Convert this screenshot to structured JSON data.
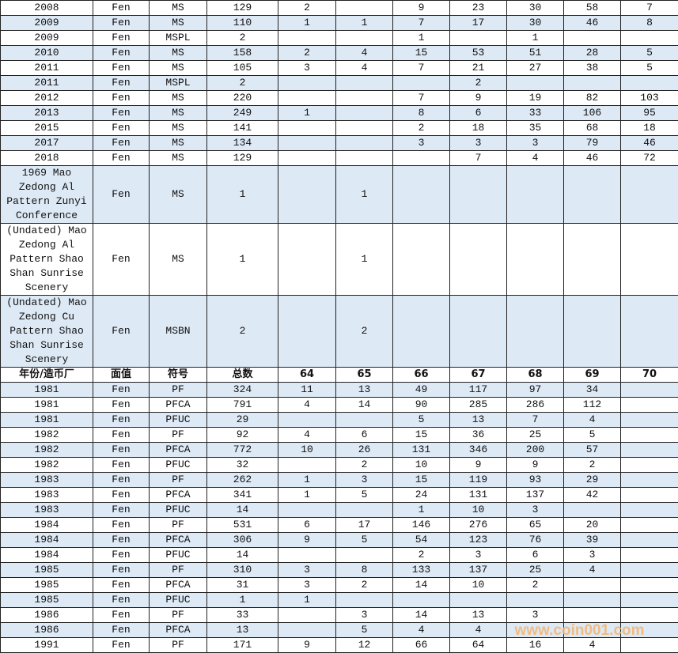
{
  "colors": {
    "row_alt": "#dde9f5",
    "border": "#222222",
    "watermark": "#f3b777"
  },
  "watermark": "www.coin001.com",
  "header": [
    "年份/造币厂",
    "面值",
    "符号",
    "总数",
    "64",
    "65",
    "66",
    "67",
    "68",
    "69",
    "70"
  ],
  "rows_top": [
    [
      "2008",
      "Fen",
      "MS",
      "129",
      "2",
      "",
      "9",
      "23",
      "30",
      "58",
      "7"
    ],
    [
      "2009",
      "Fen",
      "MS",
      "110",
      "1",
      "1",
      "7",
      "17",
      "30",
      "46",
      "8"
    ],
    [
      "2009",
      "Fen",
      "MSPL",
      "2",
      "",
      "",
      "1",
      "",
      "1",
      "",
      ""
    ],
    [
      "2010",
      "Fen",
      "MS",
      "158",
      "2",
      "4",
      "15",
      "53",
      "51",
      "28",
      "5"
    ],
    [
      "2011",
      "Fen",
      "MS",
      "105",
      "3",
      "4",
      "7",
      "21",
      "27",
      "38",
      "5"
    ],
    [
      "2011",
      "Fen",
      "MSPL",
      "2",
      "",
      "",
      "",
      "2",
      "",
      "",
      ""
    ],
    [
      "2012",
      "Fen",
      "MS",
      "220",
      "",
      "",
      "7",
      "9",
      "19",
      "82",
      "103"
    ],
    [
      "2013",
      "Fen",
      "MS",
      "249",
      "1",
      "",
      "8",
      "6",
      "33",
      "106",
      "95"
    ],
    [
      "2015",
      "Fen",
      "MS",
      "141",
      "",
      "",
      "2",
      "18",
      "35",
      "68",
      "18"
    ],
    [
      "2017",
      "Fen",
      "MS",
      "134",
      "",
      "",
      "3",
      "3",
      "3",
      "79",
      "46"
    ],
    [
      "2018",
      "Fen",
      "MS",
      "129",
      "",
      "",
      "",
      "7",
      "4",
      "46",
      "72"
    ],
    [
      "1969 Mao Zedong Al Pattern Zunyi Conference",
      "Fen",
      "MS",
      "1",
      "",
      "1",
      "",
      "",
      "",
      "",
      ""
    ],
    [
      "(Undated) Mao Zedong Al Pattern Shao Shan Sunrise Scenery",
      "Fen",
      "MS",
      "1",
      "",
      "1",
      "",
      "",
      "",
      "",
      ""
    ],
    [
      "(Undated) Mao Zedong Cu Pattern Shao Shan Sunrise Scenery",
      "Fen",
      "MSBN",
      "2",
      "",
      "2",
      "",
      "",
      "",
      "",
      ""
    ]
  ],
  "rows_bottom": [
    [
      "1981",
      "Fen",
      "PF",
      "324",
      "11",
      "13",
      "49",
      "117",
      "97",
      "34",
      ""
    ],
    [
      "1981",
      "Fen",
      "PFCA",
      "791",
      "4",
      "14",
      "90",
      "285",
      "286",
      "112",
      ""
    ],
    [
      "1981",
      "Fen",
      "PFUC",
      "29",
      "",
      "",
      "5",
      "13",
      "7",
      "4",
      ""
    ],
    [
      "1982",
      "Fen",
      "PF",
      "92",
      "4",
      "6",
      "15",
      "36",
      "25",
      "5",
      ""
    ],
    [
      "1982",
      "Fen",
      "PFCA",
      "772",
      "10",
      "26",
      "131",
      "346",
      "200",
      "57",
      ""
    ],
    [
      "1982",
      "Fen",
      "PFUC",
      "32",
      "",
      "2",
      "10",
      "9",
      "9",
      "2",
      ""
    ],
    [
      "1983",
      "Fen",
      "PF",
      "262",
      "1",
      "3",
      "15",
      "119",
      "93",
      "29",
      ""
    ],
    [
      "1983",
      "Fen",
      "PFCA",
      "341",
      "1",
      "5",
      "24",
      "131",
      "137",
      "42",
      ""
    ],
    [
      "1983",
      "Fen",
      "PFUC",
      "14",
      "",
      "",
      "1",
      "10",
      "3",
      "",
      ""
    ],
    [
      "1984",
      "Fen",
      "PF",
      "531",
      "6",
      "17",
      "146",
      "276",
      "65",
      "20",
      ""
    ],
    [
      "1984",
      "Fen",
      "PFCA",
      "306",
      "9",
      "5",
      "54",
      "123",
      "76",
      "39",
      ""
    ],
    [
      "1984",
      "Fen",
      "PFUC",
      "14",
      "",
      "",
      "2",
      "3",
      "6",
      "3",
      ""
    ],
    [
      "1985",
      "Fen",
      "PF",
      "310",
      "3",
      "8",
      "133",
      "137",
      "25",
      "4",
      ""
    ],
    [
      "1985",
      "Fen",
      "PFCA",
      "31",
      "3",
      "2",
      "14",
      "10",
      "2",
      "",
      ""
    ],
    [
      "1985",
      "Fen",
      "PFUC",
      "1",
      "1",
      "",
      "",
      "",
      "",
      "",
      ""
    ],
    [
      "1986",
      "Fen",
      "PF",
      "33",
      "",
      "3",
      "14",
      "13",
      "3",
      "",
      ""
    ],
    [
      "1986",
      "Fen",
      "PFCA",
      "13",
      "",
      "5",
      "4",
      "4",
      "",
      "",
      ""
    ],
    [
      "1991",
      "Fen",
      "PF",
      "171",
      "9",
      "12",
      "66",
      "64",
      "16",
      "4",
      ""
    ]
  ]
}
